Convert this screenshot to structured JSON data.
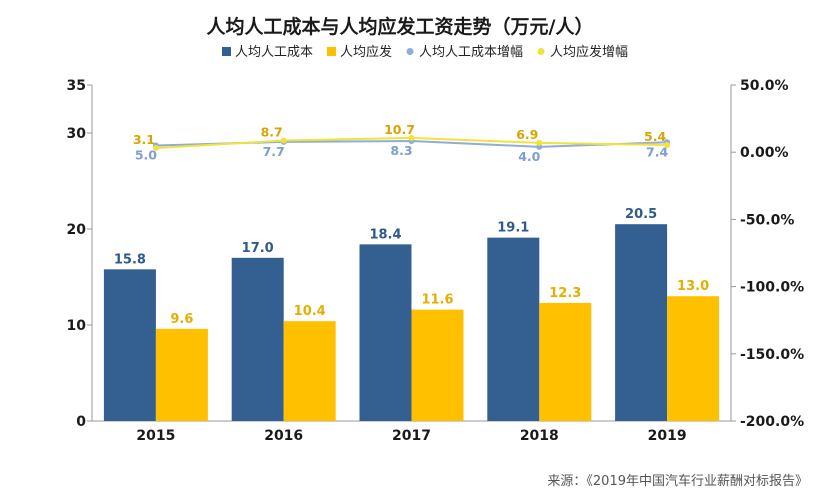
{
  "chart_data": {
    "type": "bar",
    "title": "人均人工成本与人均应发工资走势（万元/人）",
    "categories": [
      "2015",
      "2016",
      "2017",
      "2018",
      "2019"
    ],
    "series": [
      {
        "name": "人均人工成本",
        "kind": "bar",
        "axis": "left",
        "color": "#345F91",
        "values": [
          15.8,
          17.0,
          18.4,
          19.1,
          20.5
        ],
        "labels": [
          "15.8",
          "17.0",
          "18.4",
          "19.1",
          "20.5"
        ]
      },
      {
        "name": "人均应发",
        "kind": "bar",
        "axis": "left",
        "color": "#FFC000",
        "values": [
          9.6,
          10.4,
          11.6,
          12.3,
          13.0
        ],
        "labels": [
          "9.6",
          "10.4",
          "11.6",
          "12.3",
          "13.0"
        ]
      },
      {
        "name": "人均人工成本增幅",
        "kind": "line",
        "axis": "right",
        "color": "#8EADD8",
        "values": [
          5.0,
          7.7,
          8.3,
          4.0,
          7.4
        ],
        "labels": [
          "5.0",
          "7.7",
          "8.3",
          "4.0",
          "7.4"
        ]
      },
      {
        "name": "人均应发增幅",
        "kind": "line",
        "axis": "right",
        "color": "#F2E23A",
        "values": [
          3.1,
          8.7,
          10.7,
          6.9,
          5.4
        ],
        "labels": [
          "3.1",
          "8.7",
          "10.7",
          "6.9",
          "5.4"
        ]
      }
    ],
    "y_left": {
      "ylim": [
        0,
        35
      ],
      "ticks": [
        0,
        10,
        20,
        30,
        35
      ],
      "tick_labels": [
        "0",
        "10",
        "20",
        "30",
        "35"
      ]
    },
    "y_right": {
      "ylim": [
        -200,
        50
      ],
      "ticks": [
        -200,
        -150,
        -100,
        -50,
        0,
        50
      ],
      "tick_labels": [
        "-200.0%",
        "-150.0%",
        "-100.0%",
        "-50.0%",
        "0.00%",
        "50.0%"
      ]
    },
    "legend_position": "top",
    "grid": false
  },
  "source": "来源：《2019年中国汽车行业薪酬对标报告》"
}
